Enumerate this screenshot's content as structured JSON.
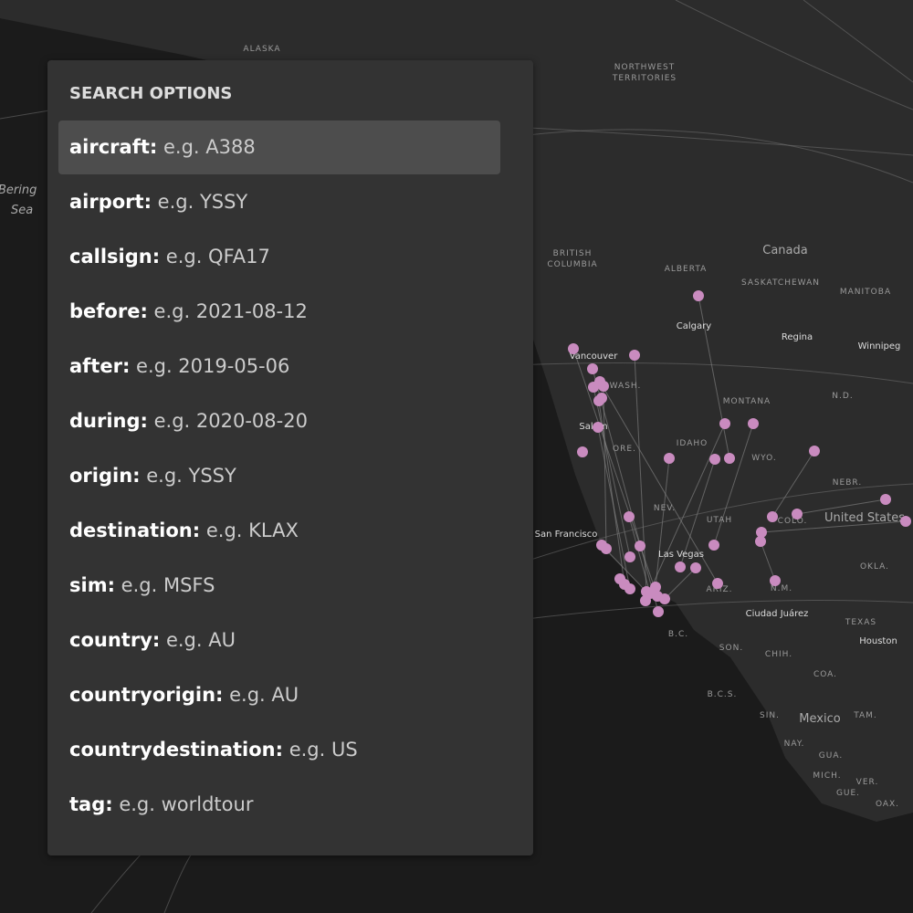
{
  "search_options": {
    "title": "SEARCH OPTIONS",
    "items": [
      {
        "key": "aircraft:",
        "example": "e.g. A388"
      },
      {
        "key": "airport:",
        "example": "e.g. YSSY"
      },
      {
        "key": "callsign:",
        "example": "e.g. QFA17"
      },
      {
        "key": "before:",
        "example": "e.g. 2021-08-12"
      },
      {
        "key": "after:",
        "example": "e.g. 2019-05-06"
      },
      {
        "key": "during:",
        "example": "e.g. 2020-08-20"
      },
      {
        "key": "origin:",
        "example": "e.g. YSSY"
      },
      {
        "key": "destination:",
        "example": "e.g. KLAX"
      },
      {
        "key": "sim:",
        "example": "e.g. MSFS"
      },
      {
        "key": "country:",
        "example": "e.g. AU"
      },
      {
        "key": "countryorigin:",
        "example": "e.g. AU"
      },
      {
        "key": "countrydestination:",
        "example": "e.g. US"
      },
      {
        "key": "tag:",
        "example": "e.g. worldtour"
      }
    ]
  },
  "map": {
    "labels": [
      "ALASKA",
      "NORTHWEST",
      "TERRITORIES",
      "Bering",
      "Sea",
      "BRITISH",
      "COLUMBIA",
      "ALBERTA",
      "SASKATCHEWAN",
      "MANITOBA",
      "Canada",
      "Calgary",
      "Regina",
      "Winnipeg",
      "Vancouver",
      "WASH.",
      "MONTANA",
      "N.D.",
      "Salem",
      "ORE.",
      "IDAHO",
      "WYO.",
      "NEBR.",
      "NEV.",
      "UTAH",
      "COLO.",
      "United States",
      "San Francisco",
      "Las Vegas",
      "ARIZ.",
      "N.M.",
      "OKLA.",
      "Ciudad Juárez",
      "TEXAS",
      "Houston",
      "B.C.",
      "SON.",
      "CHIH.",
      "COA.",
      "B.C.S.",
      "SIN.",
      "Mexico",
      "TAM.",
      "NAY.",
      "GUA.",
      "MICH.",
      "GUE.",
      "VER.",
      "OAX."
    ]
  }
}
